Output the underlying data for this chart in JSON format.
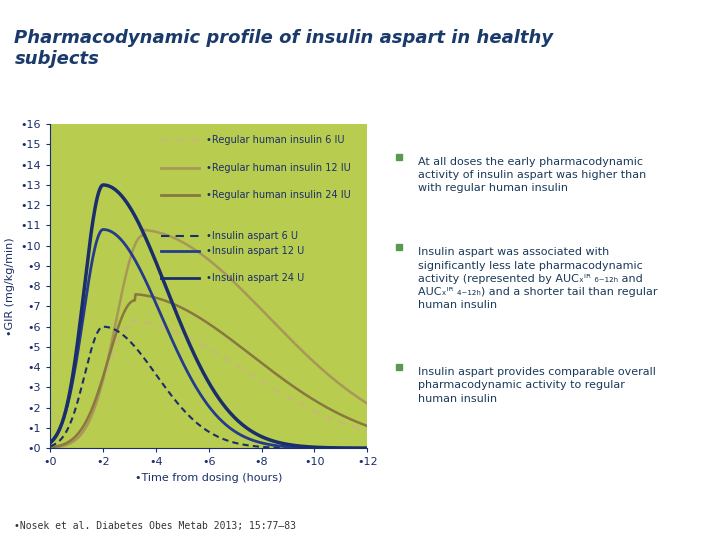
{
  "title": "Pharmacodynamic profile of insulin aspart in healthy\nsubjects",
  "title_color": "#1a3a6b",
  "bg_color": "#c8dc78",
  "bg_color2": "#d8e890",
  "plot_bg": "#c0d460",
  "xlabel": "•Time from dosing (hours)",
  "ylabel": "•GIR (mg/kg/min)",
  "xlim": [
    0,
    12
  ],
  "ylim": [
    0,
    16
  ],
  "xticks": [
    0,
    2,
    4,
    6,
    8,
    10,
    12
  ],
  "yticks": [
    0,
    1,
    2,
    3,
    4,
    5,
    6,
    7,
    8,
    9,
    10,
    11,
    12,
    13,
    14,
    15,
    16
  ],
  "xtick_labels": [
    "•0",
    "•2",
    "•4",
    "•6",
    "•8",
    "•10",
    "•12"
  ],
  "ytick_labels": [
    "•0",
    "•1",
    "•2",
    "•3",
    "•4",
    "•5",
    "•6",
    "•7",
    "•8",
    "•9",
    "•10",
    "•11",
    "•12",
    "•13",
    "•14",
    "•15",
    "•16"
  ],
  "legend_labels": [
    "•Regular human insulin 6 IU",
    "•Regular human insulin 12 IU",
    "•Regular human insulin 24 IU",
    "•Insulin aspart 6 U",
    "•Insulin aspart 12 U",
    "•Insulin aspart 24 U"
  ],
  "bullet_points": [
    "At all doses the early pharmacodynamic\nactivity of insulin aspart was higher than\nwith regular human insulin",
    "Insulin aspart was associated with\nsignificantly less late pharmacodynamic\nactivity (represented by AUCₓᴵᴿ ₆₋₁₂ₕ and\nAUCₓᴵᴿ ₄₋₁₂ₕ) and a shorter tail than regular\nhuman insulin",
    "Insulin aspart provides comparable overall\npharmacodynamic activity to regular\nhuman insulin"
  ],
  "footnote": "•Nosek et al. Diabetes Obes Metab 2013; 15:77-83",
  "line_color_rhi": "#b5a882",
  "line_color_ia": "#1a2e6b",
  "line_color_ia12": "#2e4a8a",
  "white_spiral_color": "#e8f0a0"
}
